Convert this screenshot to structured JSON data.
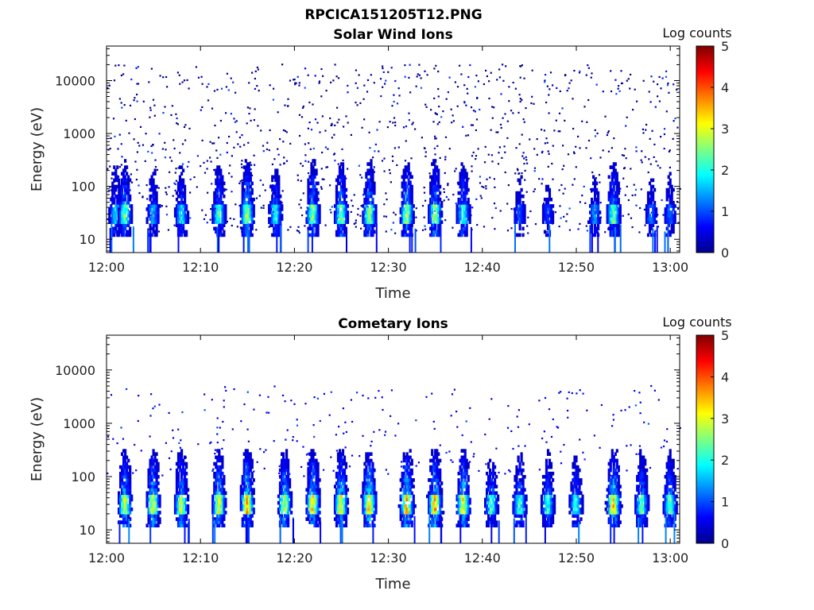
{
  "figure": {
    "title": "RPCICA151205T12.PNG"
  },
  "chart_data": [
    {
      "type": "heatmap",
      "title": "Solar Wind Ions",
      "xlabel": "Time",
      "ylabel": "Energy (eV)",
      "x_ticks": [
        "12:00",
        "12:10",
        "12:20",
        "12:30",
        "12:40",
        "12:50",
        "13:00"
      ],
      "x_range": [
        "12:00",
        "13:01"
      ],
      "y_ticks": [
        "10",
        "100",
        "1000",
        "10000"
      ],
      "y_scale": "log",
      "y_range": [
        5.6,
        45000
      ],
      "colorbar": {
        "label": "Log counts",
        "ticks": [
          "0",
          "1",
          "2",
          "3",
          "4",
          "5"
        ],
        "range": [
          0,
          5
        ],
        "colormap": "jet"
      },
      "core_energy_eV": [
        20,
        45
      ],
      "bursts": [
        {
          "time": "12:01",
          "log_counts": 1.8
        },
        {
          "time": "12:02",
          "log_counts": 2.5
        },
        {
          "time": "12:05",
          "log_counts": 1.6
        },
        {
          "time": "12:08",
          "log_counts": 1.9
        },
        {
          "time": "12:12",
          "log_counts": 2.3
        },
        {
          "time": "12:15",
          "log_counts": 2.8
        },
        {
          "time": "12:18",
          "log_counts": 2.0
        },
        {
          "time": "12:22",
          "log_counts": 2.7
        },
        {
          "time": "12:25",
          "log_counts": 2.6
        },
        {
          "time": "12:28",
          "log_counts": 2.7
        },
        {
          "time": "12:32",
          "log_counts": 2.8
        },
        {
          "time": "12:35",
          "log_counts": 2.8
        },
        {
          "time": "12:38",
          "log_counts": 2.2
        },
        {
          "time": "12:44",
          "log_counts": 1.1
        },
        {
          "time": "12:47",
          "log_counts": 1.0
        },
        {
          "time": "12:52",
          "log_counts": 1.4
        },
        {
          "time": "12:54",
          "log_counts": 2.5
        },
        {
          "time": "12:58",
          "log_counts": 1.2
        },
        {
          "time": "13:00",
          "log_counts": 1.2
        }
      ],
      "background_log_counts": 0.1
    },
    {
      "type": "heatmap",
      "title": "Cometary Ions",
      "xlabel": "Time",
      "ylabel": "Energy (eV)",
      "x_ticks": [
        "12:00",
        "12:10",
        "12:20",
        "12:30",
        "12:40",
        "12:50",
        "13:00"
      ],
      "x_range": [
        "12:00",
        "13:01"
      ],
      "y_ticks": [
        "10",
        "100",
        "1000",
        "10000"
      ],
      "y_scale": "log",
      "y_range": [
        5.6,
        45000
      ],
      "colorbar": {
        "label": "Log counts",
        "ticks": [
          "0",
          "1",
          "2",
          "3",
          "4",
          "5"
        ],
        "range": [
          0,
          5
        ],
        "colormap": "jet"
      },
      "core_energy_eV": [
        20,
        45
      ],
      "bursts": [
        {
          "time": "12:02",
          "log_counts": 3.0
        },
        {
          "time": "12:05",
          "log_counts": 3.2
        },
        {
          "time": "12:08",
          "log_counts": 3.0
        },
        {
          "time": "12:12",
          "log_counts": 3.1
        },
        {
          "time": "12:15",
          "log_counts": 3.6
        },
        {
          "time": "12:19",
          "log_counts": 3.0
        },
        {
          "time": "12:22",
          "log_counts": 3.5
        },
        {
          "time": "12:25",
          "log_counts": 3.3
        },
        {
          "time": "12:28",
          "log_counts": 3.6
        },
        {
          "time": "12:32",
          "log_counts": 3.6
        },
        {
          "time": "12:35",
          "log_counts": 3.6
        },
        {
          "time": "12:38",
          "log_counts": 3.3
        },
        {
          "time": "12:41",
          "log_counts": 2.2
        },
        {
          "time": "12:44",
          "log_counts": 2.2
        },
        {
          "time": "12:47",
          "log_counts": 2.2
        },
        {
          "time": "12:50",
          "log_counts": 2.1
        },
        {
          "time": "12:54",
          "log_counts": 3.5
        },
        {
          "time": "12:57",
          "log_counts": 2.4
        },
        {
          "time": "13:00",
          "log_counts": 2.4
        }
      ],
      "background_log_counts": 0.5
    }
  ]
}
